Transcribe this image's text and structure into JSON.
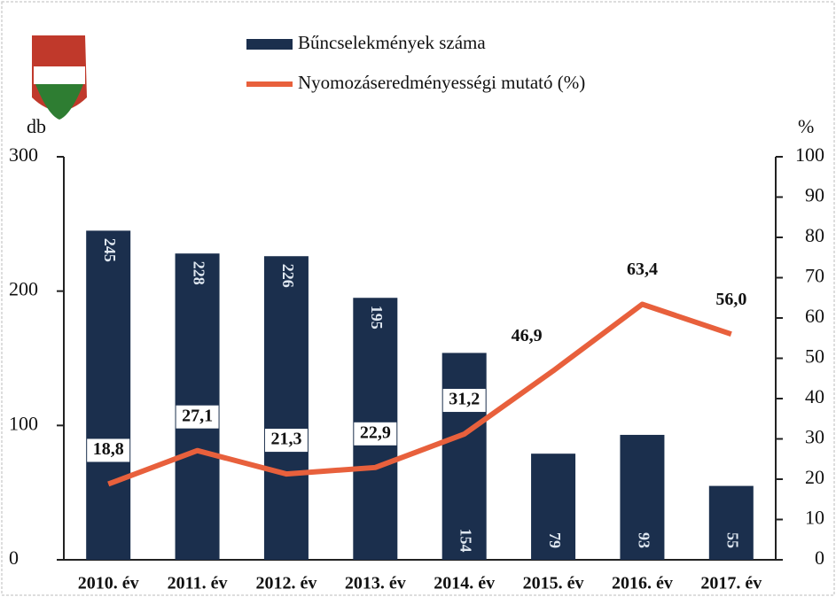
{
  "chart_data": {
    "type": "bar",
    "categories": [
      "2010. év",
      "2011. év",
      "2012. év",
      "2013. év",
      "2014. év",
      "2015. év",
      "2016. év",
      "2017. év"
    ],
    "series": [
      {
        "name": "Bűncselekmények száma",
        "color": "#1b2f4d",
        "values": [
          245,
          228,
          226,
          195,
          154,
          79,
          93,
          55
        ]
      },
      {
        "name": "Nyomozáseredményességi mutató (%)",
        "color": "#e8603c",
        "type": "line",
        "axis": "y2",
        "values": [
          18.8,
          27.1,
          21.3,
          22.9,
          31.2,
          46.9,
          63.4,
          56.0
        ],
        "value_labels": [
          "18,8",
          "27,1",
          "21,3",
          "22,9",
          "31,2",
          "46,9",
          "63,4",
          "56,0"
        ]
      }
    ],
    "ylabel": "db",
    "y2label": "%",
    "ylim": [
      0,
      300
    ],
    "yticks": [
      0,
      100,
      200,
      300
    ],
    "y2lim": [
      0,
      100
    ],
    "y2ticks": [
      0,
      10,
      20,
      30,
      40,
      50,
      60,
      70,
      80,
      90,
      100
    ]
  }
}
